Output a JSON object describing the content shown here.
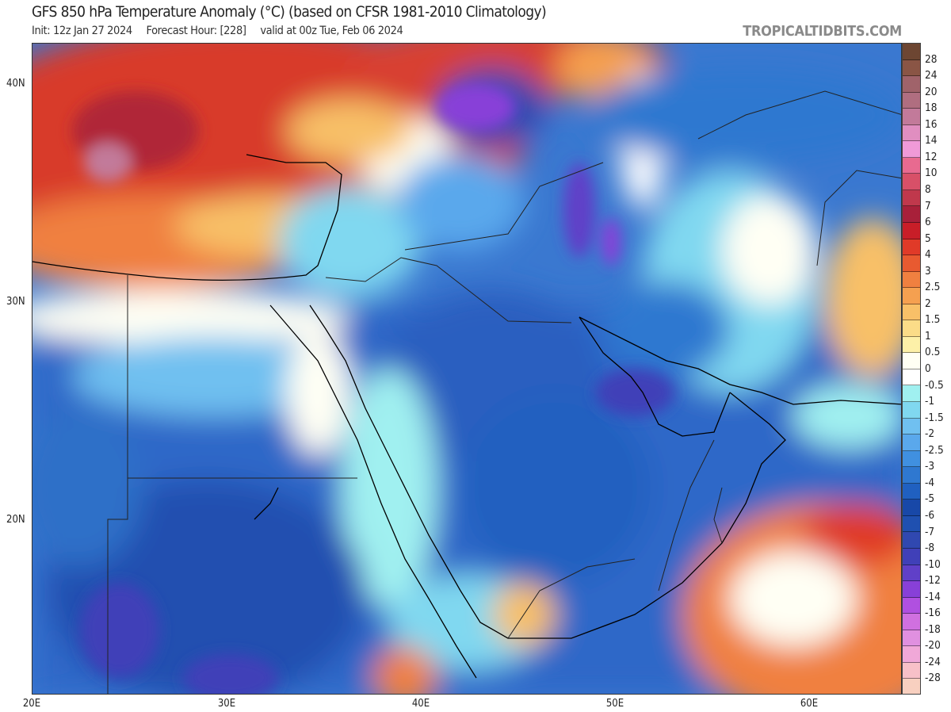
{
  "header": {
    "title": "GFS 850 hPa Temperature Anomaly (°C) (based on CFSR 1981-2010 Climatology)",
    "init": "Init: 12z Jan 27 2024",
    "forecast_hour": "Forecast Hour: [228]",
    "valid": "valid at 00z Tue, Feb 06 2024",
    "brand": "TROPICALTIDBITS.COM"
  },
  "axes": {
    "lat_labels": [
      "40N",
      "30N",
      "20N"
    ],
    "lon_labels": [
      "20E",
      "30E",
      "40E",
      "50E",
      "60E"
    ]
  },
  "colorbar": {
    "labels": [
      "28",
      "24",
      "20",
      "18",
      "16",
      "14",
      "12",
      "10",
      "8",
      "7",
      "6",
      "5",
      "4",
      "3",
      "2.5",
      "2",
      "1.5",
      "1",
      "0.5",
      "0",
      "-0.5",
      "-1",
      "-1.5",
      "-2",
      "-2.5",
      "-3",
      "-4",
      "-5",
      "-6",
      "-7",
      "-8",
      "-10",
      "-12",
      "-14",
      "-16",
      "-18",
      "-20",
      "-24",
      "-28"
    ],
    "colors": [
      "#6d4632",
      "#8a5545",
      "#a0636a",
      "#b06e80",
      "#c27a9a",
      "#e08ec0",
      "#f09ad8",
      "#e86a90",
      "#d85068",
      "#c0384c",
      "#a8203a",
      "#c81e28",
      "#e03a28",
      "#e85a30",
      "#f08040",
      "#f5a050",
      "#f8c068",
      "#fbdc88",
      "#fdf0a8",
      "#fffff4",
      "#ffffff",
      "#a0f0f0",
      "#80d8f0",
      "#70c0f0",
      "#5aa8ec",
      "#4090e0",
      "#2f78d0",
      "#2060c0",
      "#1848a8",
      "#1f50b0",
      "#3048b0",
      "#4040b8",
      "#6040c8",
      "#8840d8",
      "#b050e0",
      "#d070e0",
      "#e090e0",
      "#f0a8d8",
      "#f8c0c8",
      "#f8d0c0"
    ]
  }
}
